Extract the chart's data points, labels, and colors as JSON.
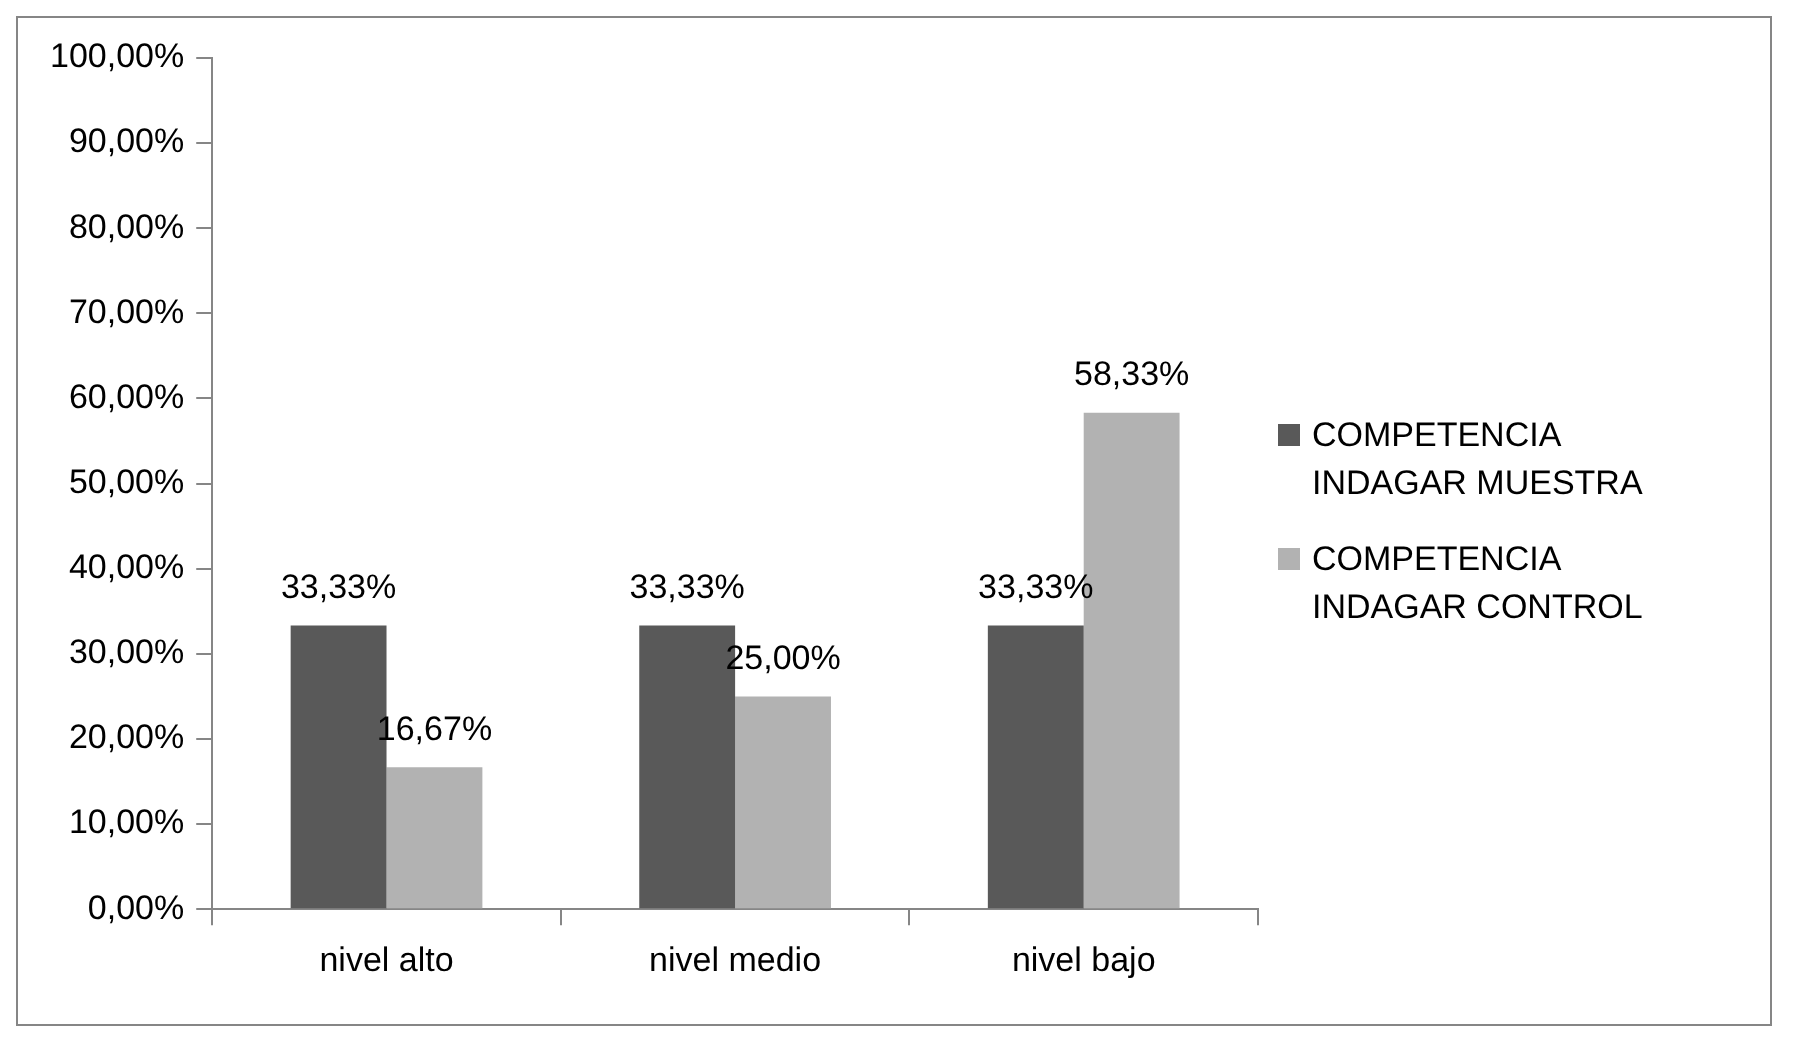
{
  "chart_data": {
    "type": "bar",
    "categories": [
      "nivel alto",
      "nivel medio",
      "nivel bajo"
    ],
    "series": [
      {
        "name": "COMPETENCIA INDAGAR MUESTRA",
        "color": "#595959",
        "values": [
          33.33,
          33.33,
          33.33
        ],
        "value_labels": [
          "33,33%",
          "33,33%",
          "33,33%"
        ]
      },
      {
        "name": "COMPETENCIA INDAGAR CONTROL",
        "color": "#b2b2b2",
        "values": [
          16.67,
          25.0,
          58.33
        ],
        "value_labels": [
          "16,67%",
          "25,00%",
          "58,33%"
        ]
      }
    ],
    "ylim": [
      0,
      100
    ],
    "yticks": [
      {
        "value": 0,
        "label": "0,00%"
      },
      {
        "value": 10,
        "label": "10,00%"
      },
      {
        "value": 20,
        "label": "20,00%"
      },
      {
        "value": 30,
        "label": "30,00%"
      },
      {
        "value": 40,
        "label": "40,00%"
      },
      {
        "value": 50,
        "label": "50,00%"
      },
      {
        "value": 60,
        "label": "60,00%"
      },
      {
        "value": 70,
        "label": "70,00%"
      },
      {
        "value": 80,
        "label": "80,00%"
      },
      {
        "value": 90,
        "label": "90,00%"
      },
      {
        "value": 100,
        "label": "100,00%"
      }
    ],
    "grid": false,
    "legend": "right"
  }
}
